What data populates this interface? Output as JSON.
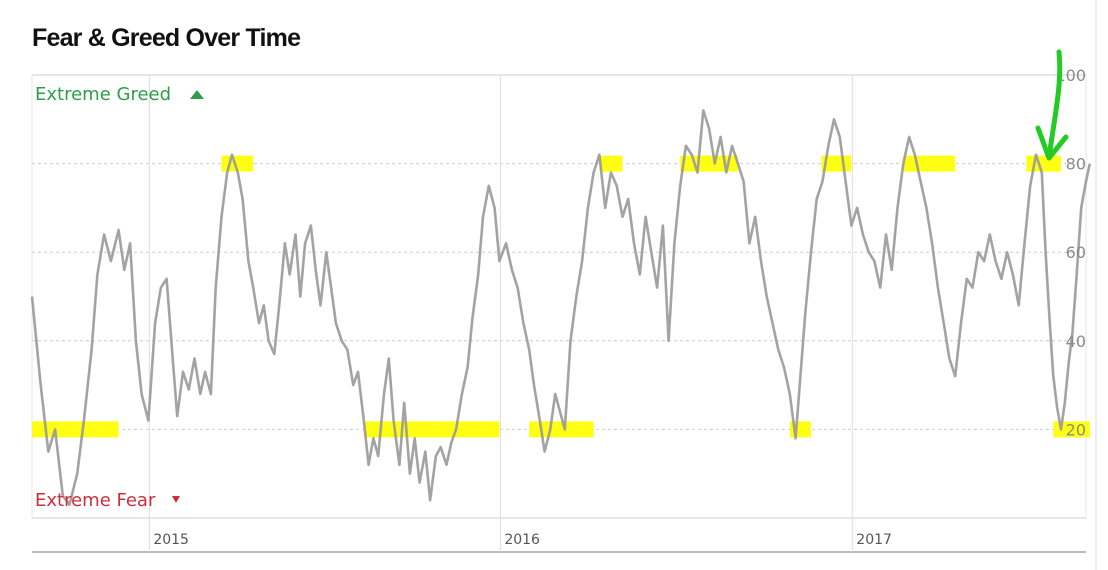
{
  "chart_data": {
    "type": "line",
    "title": "Fear & Greed Over Time",
    "xlabel": "",
    "ylabel": "",
    "ylim": [
      0,
      100
    ],
    "xlim": [
      "2014-09",
      "2017-09"
    ],
    "yticks": [
      "20",
      "40",
      "60",
      "80",
      "100"
    ],
    "xticks": [
      {
        "label": "2015",
        "date": "2015-01-01"
      },
      {
        "label": "2016",
        "date": "2016-01-01"
      },
      {
        "label": "2017",
        "date": "2017-01-01"
      }
    ],
    "zone_labels": {
      "top": "Extreme Greed",
      "bottom": "Extreme Fear"
    },
    "grid": true,
    "colors": {
      "line": "#999999",
      "highlight": "#ffff00",
      "greed": "#2e9e48",
      "fear": "#cc2f3c",
      "arrow": "#22cc22",
      "grid": "#cccccc"
    },
    "series": [
      {
        "values": [
          [
            "2014-09-01",
            50
          ],
          [
            "2014-09-10",
            30
          ],
          [
            "2014-09-18",
            15
          ],
          [
            "2014-09-25",
            20
          ],
          [
            "2014-10-03",
            5
          ],
          [
            "2014-10-10",
            3
          ],
          [
            "2014-10-18",
            10
          ],
          [
            "2014-10-25",
            22
          ],
          [
            "2014-11-02",
            38
          ],
          [
            "2014-11-08",
            55
          ],
          [
            "2014-11-15",
            64
          ],
          [
            "2014-11-22",
            58
          ],
          [
            "2014-11-30",
            65
          ],
          [
            "2014-12-06",
            56
          ],
          [
            "2014-12-12",
            62
          ],
          [
            "2014-12-18",
            40
          ],
          [
            "2014-12-24",
            28
          ],
          [
            "2014-12-31",
            22
          ],
          [
            "2015-01-07",
            44
          ],
          [
            "2015-01-13",
            52
          ],
          [
            "2015-01-19",
            54
          ],
          [
            "2015-01-26",
            34
          ],
          [
            "2015-01-30",
            23
          ],
          [
            "2015-02-05",
            33
          ],
          [
            "2015-02-11",
            29
          ],
          [
            "2015-02-17",
            36
          ],
          [
            "2015-02-23",
            28
          ],
          [
            "2015-02-28",
            33
          ],
          [
            "2015-03-06",
            28
          ],
          [
            "2015-03-11",
            52
          ],
          [
            "2015-03-17",
            68
          ],
          [
            "2015-03-23",
            78
          ],
          [
            "2015-03-28",
            82
          ],
          [
            "2015-04-03",
            78
          ],
          [
            "2015-04-08",
            72
          ],
          [
            "2015-04-14",
            58
          ],
          [
            "2015-04-19",
            52
          ],
          [
            "2015-04-25",
            44
          ],
          [
            "2015-04-30",
            48
          ],
          [
            "2015-05-05",
            40
          ],
          [
            "2015-05-11",
            37
          ],
          [
            "2015-05-16",
            48
          ],
          [
            "2015-05-22",
            62
          ],
          [
            "2015-05-27",
            55
          ],
          [
            "2015-06-02",
            64
          ],
          [
            "2015-06-07",
            50
          ],
          [
            "2015-06-12",
            62
          ],
          [
            "2015-06-18",
            66
          ],
          [
            "2015-06-23",
            56
          ],
          [
            "2015-06-28",
            48
          ],
          [
            "2015-07-04",
            60
          ],
          [
            "2015-07-09",
            52
          ],
          [
            "2015-07-14",
            44
          ],
          [
            "2015-07-20",
            40
          ],
          [
            "2015-07-26",
            38
          ],
          [
            "2015-08-01",
            30
          ],
          [
            "2015-08-06",
            33
          ],
          [
            "2015-08-12",
            22
          ],
          [
            "2015-08-17",
            12
          ],
          [
            "2015-08-22",
            18
          ],
          [
            "2015-08-27",
            14
          ],
          [
            "2015-09-02",
            28
          ],
          [
            "2015-09-07",
            36
          ],
          [
            "2015-09-12",
            22
          ],
          [
            "2015-09-18",
            12
          ],
          [
            "2015-09-23",
            26
          ],
          [
            "2015-09-29",
            10
          ],
          [
            "2015-10-04",
            18
          ],
          [
            "2015-10-09",
            8
          ],
          [
            "2015-10-15",
            15
          ],
          [
            "2015-10-20",
            4
          ],
          [
            "2015-10-26",
            14
          ],
          [
            "2015-10-31",
            16
          ],
          [
            "2015-11-06",
            12
          ],
          [
            "2015-11-11",
            17
          ],
          [
            "2015-11-16",
            20
          ],
          [
            "2015-11-22",
            28
          ],
          [
            "2015-11-28",
            34
          ],
          [
            "2015-12-03",
            45
          ],
          [
            "2015-12-09",
            55
          ],
          [
            "2015-12-14",
            68
          ],
          [
            "2015-12-20",
            75
          ],
          [
            "2015-12-26",
            70
          ],
          [
            "2015-12-31",
            58
          ],
          [
            "2016-01-07",
            62
          ],
          [
            "2016-01-13",
            56
          ],
          [
            "2016-01-19",
            52
          ],
          [
            "2016-01-25",
            44
          ],
          [
            "2016-01-31",
            38
          ],
          [
            "2016-02-05",
            30
          ],
          [
            "2016-02-11",
            22
          ],
          [
            "2016-02-16",
            15
          ],
          [
            "2016-02-22",
            20
          ],
          [
            "2016-02-27",
            28
          ],
          [
            "2016-03-03",
            24
          ],
          [
            "2016-03-08",
            20
          ],
          [
            "2016-03-14",
            40
          ],
          [
            "2016-03-20",
            50
          ],
          [
            "2016-03-26",
            58
          ],
          [
            "2016-04-01",
            70
          ],
          [
            "2016-04-07",
            78
          ],
          [
            "2016-04-13",
            82
          ],
          [
            "2016-04-19",
            70
          ],
          [
            "2016-04-25",
            78
          ],
          [
            "2016-05-01",
            75
          ],
          [
            "2016-05-07",
            68
          ],
          [
            "2016-05-13",
            72
          ],
          [
            "2016-05-19",
            62
          ],
          [
            "2016-05-25",
            55
          ],
          [
            "2016-05-31",
            68
          ],
          [
            "2016-06-06",
            60
          ],
          [
            "2016-06-12",
            52
          ],
          [
            "2016-06-18",
            66
          ],
          [
            "2016-06-24",
            40
          ],
          [
            "2016-06-30",
            62
          ],
          [
            "2016-07-06",
            75
          ],
          [
            "2016-07-12",
            84
          ],
          [
            "2016-07-18",
            82
          ],
          [
            "2016-07-24",
            78
          ],
          [
            "2016-07-30",
            92
          ],
          [
            "2016-08-05",
            88
          ],
          [
            "2016-08-11",
            80
          ],
          [
            "2016-08-17",
            86
          ],
          [
            "2016-08-23",
            78
          ],
          [
            "2016-08-29",
            84
          ],
          [
            "2016-09-04",
            80
          ],
          [
            "2016-09-10",
            76
          ],
          [
            "2016-09-16",
            62
          ],
          [
            "2016-09-22",
            68
          ],
          [
            "2016-09-28",
            58
          ],
          [
            "2016-10-04",
            50
          ],
          [
            "2016-10-10",
            44
          ],
          [
            "2016-10-16",
            38
          ],
          [
            "2016-10-22",
            34
          ],
          [
            "2016-10-28",
            28
          ],
          [
            "2016-11-03",
            18
          ],
          [
            "2016-11-08",
            32
          ],
          [
            "2016-11-13",
            46
          ],
          [
            "2016-11-19",
            60
          ],
          [
            "2016-11-25",
            72
          ],
          [
            "2016-12-01",
            76
          ],
          [
            "2016-12-07",
            84
          ],
          [
            "2016-12-13",
            90
          ],
          [
            "2016-12-19",
            86
          ],
          [
            "2016-12-25",
            76
          ],
          [
            "2016-12-31",
            66
          ],
          [
            "2017-01-06",
            70
          ],
          [
            "2017-01-12",
            64
          ],
          [
            "2017-01-18",
            60
          ],
          [
            "2017-01-24",
            58
          ],
          [
            "2017-01-30",
            52
          ],
          [
            "2017-02-05",
            64
          ],
          [
            "2017-02-11",
            56
          ],
          [
            "2017-02-17",
            70
          ],
          [
            "2017-02-23",
            80
          ],
          [
            "2017-03-01",
            86
          ],
          [
            "2017-03-07",
            82
          ],
          [
            "2017-03-13",
            76
          ],
          [
            "2017-03-19",
            70
          ],
          [
            "2017-03-25",
            62
          ],
          [
            "2017-03-31",
            52
          ],
          [
            "2017-04-06",
            44
          ],
          [
            "2017-04-12",
            36
          ],
          [
            "2017-04-18",
            32
          ],
          [
            "2017-04-24",
            44
          ],
          [
            "2017-04-30",
            54
          ],
          [
            "2017-05-06",
            52
          ],
          [
            "2017-05-12",
            60
          ],
          [
            "2017-05-18",
            58
          ],
          [
            "2017-05-24",
            64
          ],
          [
            "2017-05-30",
            58
          ],
          [
            "2017-06-05",
            54
          ],
          [
            "2017-06-11",
            60
          ],
          [
            "2017-06-17",
            55
          ],
          [
            "2017-06-23",
            48
          ],
          [
            "2017-06-29",
            62
          ],
          [
            "2017-07-05",
            75
          ],
          [
            "2017-07-11",
            82
          ],
          [
            "2017-07-17",
            78
          ],
          [
            "2017-07-21",
            60
          ],
          [
            "2017-07-25",
            45
          ],
          [
            "2017-07-29",
            32
          ],
          [
            "2017-08-02",
            25
          ],
          [
            "2017-08-06",
            20
          ],
          [
            "2017-08-10",
            26
          ],
          [
            "2017-08-14",
            35
          ],
          [
            "2017-08-18",
            42
          ],
          [
            "2017-08-22",
            54
          ],
          [
            "2017-08-27",
            70
          ],
          [
            "2017-09-01",
            76
          ],
          [
            "2017-09-05",
            80
          ]
        ]
      }
    ],
    "highlights": [
      {
        "level": 20,
        "from": "2014-09-01",
        "to": "2014-11-30"
      },
      {
        "level": 80,
        "from": "2015-03-17",
        "to": "2015-04-19"
      },
      {
        "level": 20,
        "from": "2015-08-12",
        "to": "2015-12-31"
      },
      {
        "level": 20,
        "from": "2016-01-31",
        "to": "2016-04-07"
      },
      {
        "level": 80,
        "from": "2016-04-13",
        "to": "2016-05-07"
      },
      {
        "level": 80,
        "from": "2016-07-06",
        "to": "2016-09-04"
      },
      {
        "level": 80,
        "from": "2016-11-30",
        "to": "2016-12-31"
      },
      {
        "level": 20,
        "from": "2016-10-28",
        "to": "2016-11-19"
      },
      {
        "level": 80,
        "from": "2017-02-23",
        "to": "2017-04-18"
      },
      {
        "level": 80,
        "from": "2017-07-01",
        "to": "2017-08-06"
      },
      {
        "level": 20,
        "from": "2017-07-29",
        "to": "2017-09-05"
      }
    ]
  }
}
